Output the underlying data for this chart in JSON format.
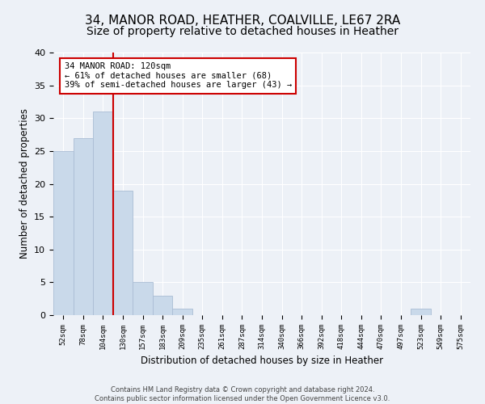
{
  "title": "34, MANOR ROAD, HEATHER, COALVILLE, LE67 2RA",
  "subtitle": "Size of property relative to detached houses in Heather",
  "xlabel": "Distribution of detached houses by size in Heather",
  "ylabel": "Number of detached properties",
  "footer_line1": "Contains HM Land Registry data © Crown copyright and database right 2024.",
  "footer_line2": "Contains public sector information licensed under the Open Government Licence v3.0.",
  "categories": [
    "52sqm",
    "78sqm",
    "104sqm",
    "130sqm",
    "157sqm",
    "183sqm",
    "209sqm",
    "235sqm",
    "261sqm",
    "287sqm",
    "314sqm",
    "340sqm",
    "366sqm",
    "392sqm",
    "418sqm",
    "444sqm",
    "470sqm",
    "497sqm",
    "523sqm",
    "549sqm",
    "575sqm"
  ],
  "values": [
    25,
    27,
    31,
    19,
    5,
    3,
    1,
    0,
    0,
    0,
    0,
    0,
    0,
    0,
    0,
    0,
    0,
    0,
    1,
    0,
    0
  ],
  "bar_color": "#c9d9ea",
  "bar_edge_color": "#aabdd4",
  "vline_color": "#cc0000",
  "annotation_line1": "34 MANOR ROAD: 120sqm",
  "annotation_line2": "← 61% of detached houses are smaller (68)",
  "annotation_line3": "39% of semi-detached houses are larger (43) →",
  "annotation_box_color": "#ffffff",
  "annotation_border_color": "#cc0000",
  "ylim": [
    0,
    40
  ],
  "yticks": [
    0,
    5,
    10,
    15,
    20,
    25,
    30,
    35,
    40
  ],
  "background_color": "#edf1f7",
  "plot_background": "#edf1f7",
  "grid_color": "#ffffff",
  "title_fontsize": 11,
  "subtitle_fontsize": 10,
  "axis_label_fontsize": 8.5
}
